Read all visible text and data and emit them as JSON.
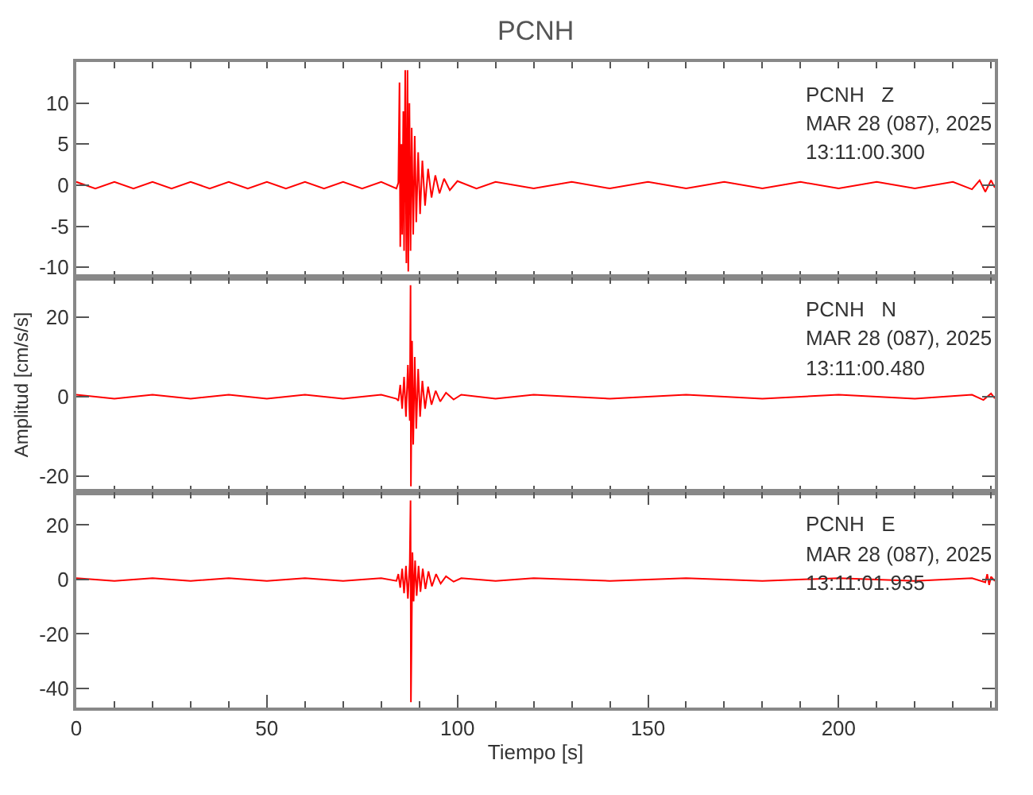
{
  "chart_data": [
    {
      "type": "line",
      "title": "PCNH",
      "annotations": [
        "PCNH   Z",
        "MAR 28 (087), 2025",
        "13:11:00.300"
      ],
      "xlim": [
        0,
        241
      ],
      "xticks": [
        0,
        50,
        100,
        150,
        200
      ],
      "ylim": [
        -11.2,
        15
      ],
      "yticks": [
        -10,
        -5,
        0,
        5,
        10
      ],
      "tick_labels": "y",
      "marker": "none",
      "line_style": "solid",
      "x": [
        0,
        5,
        10,
        15,
        20,
        25,
        30,
        35,
        40,
        45,
        50,
        55,
        60,
        65,
        70,
        75,
        80,
        84,
        84.5,
        84.8,
        85.0,
        85.3,
        85.5,
        85.8,
        86.0,
        86.3,
        86.6,
        86.9,
        87.1,
        87.4,
        87.7,
        88.0,
        88.4,
        88.8,
        89.2,
        89.7,
        90.2,
        90.8,
        91.5,
        92.3,
        93.2,
        94.2,
        95.3,
        96.5,
        98,
        100,
        105,
        110,
        120,
        130,
        140,
        150,
        160,
        170,
        180,
        190,
        200,
        210,
        220,
        230,
        235,
        237,
        238.5,
        240,
        241
      ],
      "series": [
        {
          "color": "#ff0000",
          "values": [
            0.4,
            -0.4,
            0.4,
            -0.4,
            0.4,
            -0.4,
            0.4,
            -0.4,
            0.4,
            -0.4,
            0.4,
            -0.4,
            0.4,
            -0.4,
            0.4,
            -0.4,
            0.4,
            -0.4,
            0.3,
            12.5,
            -7.5,
            5,
            -6,
            9,
            -8,
            14,
            -9.5,
            14,
            -10.5,
            10,
            -8,
            7,
            -6,
            6,
            -4.5,
            4,
            -3.5,
            3,
            -2.5,
            2,
            -1.5,
            1.2,
            -1,
            0.8,
            -0.6,
            0.5,
            -0.4,
            0.4,
            -0.4,
            0.4,
            -0.4,
            0.4,
            -0.4,
            0.4,
            -0.4,
            0.4,
            -0.4,
            0.4,
            -0.4,
            0.4,
            -0.5,
            0.6,
            -0.8,
            0.6,
            -0.3
          ]
        }
      ]
    },
    {
      "type": "line",
      "ylabel": "Amplitud [cm/s/s]",
      "annotations": [
        "PCNH   N",
        "MAR 28 (087), 2025",
        "13:11:00.480"
      ],
      "xlim": [
        0,
        241
      ],
      "xticks": [
        0,
        50,
        100,
        150,
        200
      ],
      "ylim": [
        -24,
        30
      ],
      "yticks": [
        -20,
        0,
        20
      ],
      "tick_labels": "y",
      "marker": "none",
      "line_style": "solid",
      "x": [
        0,
        10,
        20,
        30,
        40,
        50,
        60,
        70,
        80,
        84,
        84.5,
        85,
        85.5,
        86,
        86.5,
        87,
        87.5,
        87.7,
        87.8,
        88.1,
        88.4,
        88.8,
        89.2,
        89.7,
        90.2,
        90.8,
        91.5,
        92.3,
        93.2,
        94.3,
        95.5,
        97,
        99,
        101,
        110,
        120,
        140,
        160,
        180,
        200,
        220,
        235,
        238,
        240,
        241
      ],
      "series": [
        {
          "color": "#ff0000",
          "values": [
            0.5,
            -0.5,
            0.5,
            -0.5,
            0.5,
            -0.5,
            0.5,
            -0.5,
            0.5,
            -0.5,
            -1,
            3,
            -3,
            5,
            -5,
            8,
            -6,
            28,
            -22.5,
            14,
            -12,
            10,
            -8,
            7,
            -5,
            4,
            -3,
            2.5,
            -2,
            1.5,
            -1.2,
            1,
            -0.7,
            0.5,
            -0.5,
            0.5,
            -0.5,
            0.5,
            -0.5,
            0.5,
            -0.5,
            0.5,
            -0.8,
            0.8,
            -0.4
          ]
        }
      ]
    },
    {
      "type": "line",
      "xlabel": "Tiempo [s]",
      "annotations": [
        "PCNH   E",
        "MAR 28 (087), 2025",
        "13:11:01.935"
      ],
      "xlim": [
        0,
        241
      ],
      "xticks": [
        0,
        50,
        100,
        150,
        200
      ],
      "ylim": [
        -47,
        32
      ],
      "yticks": [
        -40,
        -20,
        0,
        20
      ],
      "marker": "none",
      "line_style": "solid",
      "x": [
        0,
        10,
        20,
        30,
        40,
        50,
        60,
        70,
        80,
        84,
        84.5,
        85,
        85.5,
        86,
        86.5,
        87,
        87.5,
        87.7,
        87.8,
        88.2,
        88.5,
        88.9,
        89.3,
        89.8,
        90.3,
        90.9,
        91.6,
        92.4,
        93.3,
        94.4,
        95.6,
        97,
        99,
        101,
        110,
        120,
        140,
        160,
        180,
        200,
        220,
        235,
        238.5,
        239,
        239.5,
        240,
        241
      ],
      "series": [
        {
          "color": "#ff0000",
          "values": [
            0.5,
            -0.5,
            0.5,
            -0.5,
            0.5,
            -0.5,
            0.5,
            -0.5,
            0.5,
            -0.5,
            2,
            -3,
            4,
            -5,
            5,
            -7,
            6,
            29,
            -45,
            10,
            -8,
            7,
            -6,
            5,
            -4.5,
            4,
            -3.5,
            3,
            -2.5,
            2,
            -1.5,
            1.2,
            -0.8,
            0.5,
            -0.5,
            0.5,
            -0.5,
            0.5,
            -0.5,
            0.5,
            -0.5,
            0.5,
            -1,
            2,
            -2,
            1,
            -0.5
          ]
        }
      ]
    }
  ]
}
